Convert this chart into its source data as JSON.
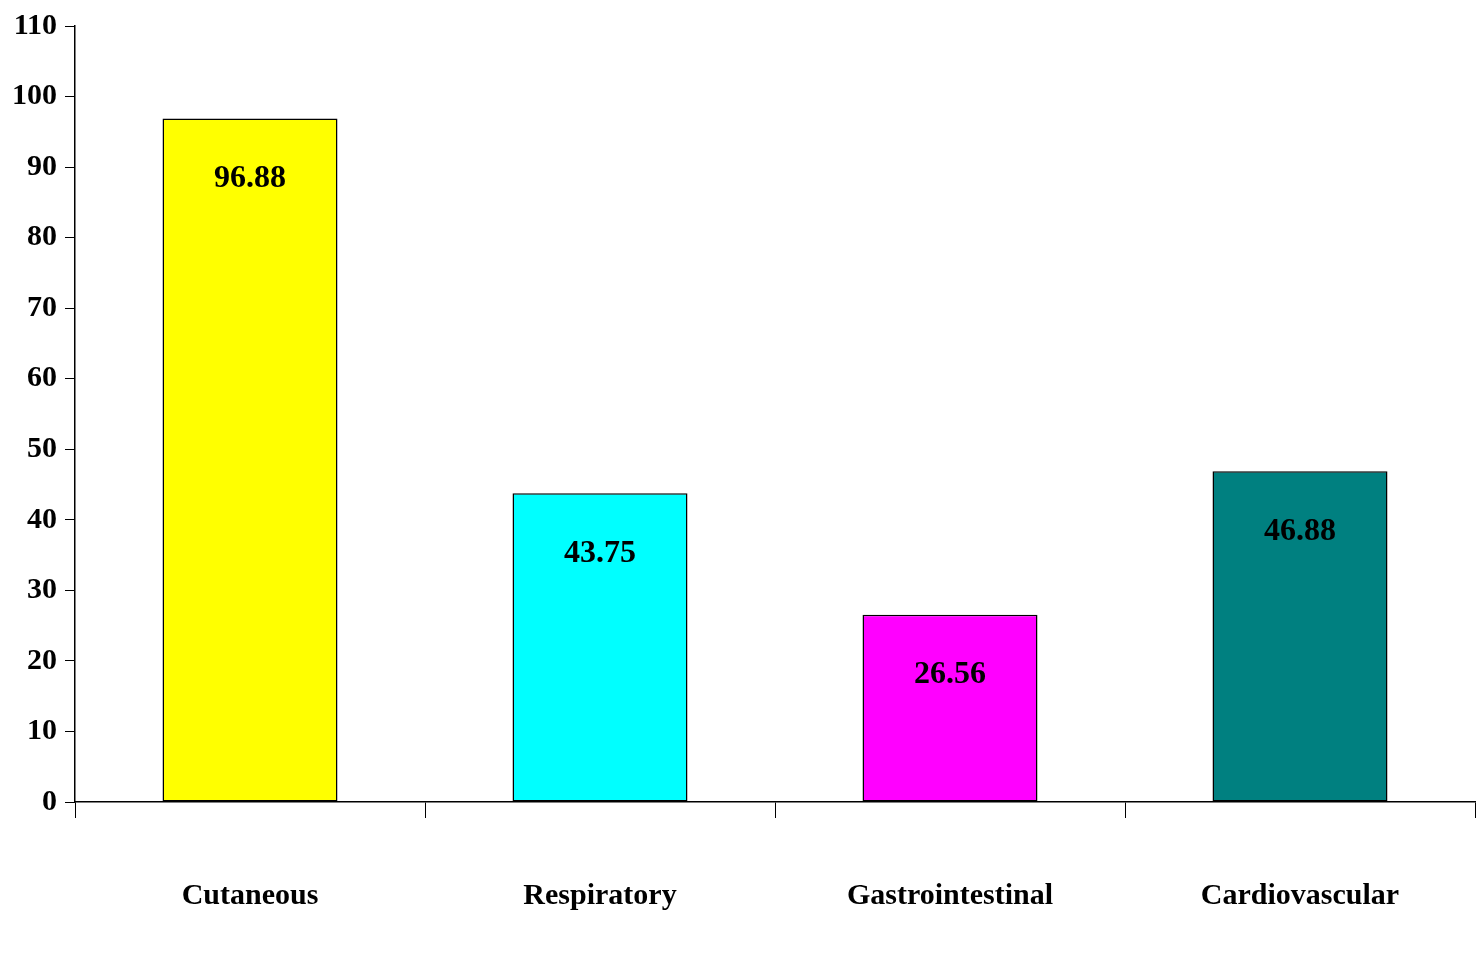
{
  "chart_data": {
    "type": "bar",
    "categories": [
      "Cutaneous",
      "Respiratory",
      "Gastrointestinal",
      "Cardiovascular"
    ],
    "values": [
      96.88,
      43.75,
      26.56,
      46.88
    ],
    "colors": [
      "#ffff00",
      "#00ffff",
      "#ff00ff",
      "#008080"
    ],
    "ylim": [
      0,
      110
    ],
    "yticks": [
      0,
      10,
      20,
      30,
      40,
      50,
      60,
      70,
      80,
      90,
      100,
      110
    ],
    "grid": false,
    "legend": false,
    "data_labels": true
  }
}
